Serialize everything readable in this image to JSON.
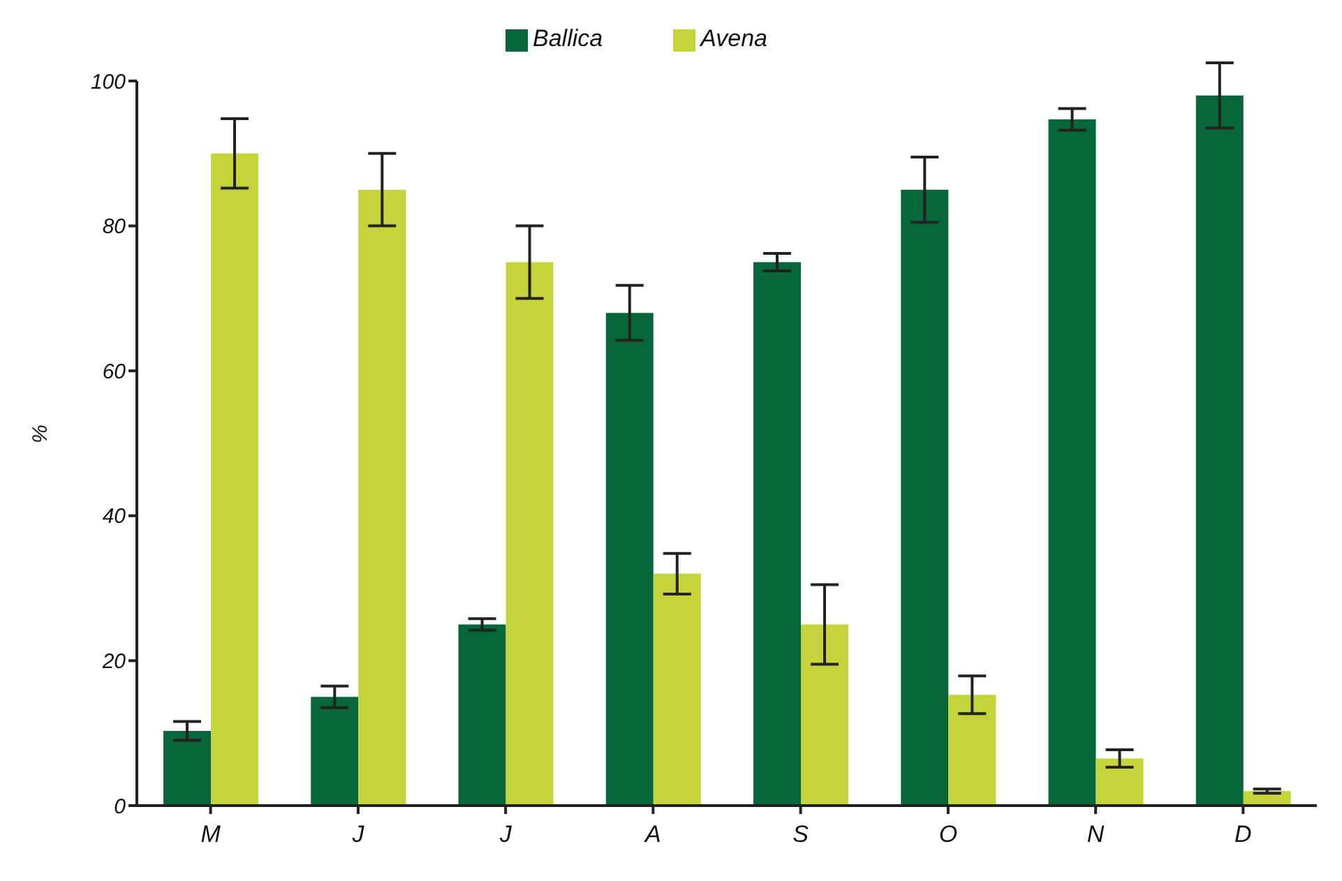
{
  "chart_data": {
    "type": "bar",
    "ylabel": "%",
    "categories": [
      "M",
      "J",
      "J",
      "A",
      "S",
      "O",
      "N",
      "D"
    ],
    "series": [
      {
        "name": "Ballica",
        "color": "#08673a",
        "values": [
          10.3,
          15,
          25,
          68,
          75,
          85,
          94.7,
          98
        ],
        "errors": [
          1.3,
          1.5,
          0.8,
          3.8,
          1.2,
          4.5,
          1.5,
          4.5
        ]
      },
      {
        "name": "Avena",
        "color": "#c4d43a",
        "values": [
          90,
          85,
          75,
          32,
          25,
          15.3,
          6.5,
          2
        ],
        "errors": [
          4.8,
          5,
          5,
          2.8,
          5.5,
          2.6,
          1.2,
          0.3
        ]
      }
    ],
    "ylim": [
      0,
      100
    ],
    "yticks": [
      0,
      20,
      40,
      60,
      80,
      100
    ],
    "grid": false,
    "legend": "top"
  }
}
